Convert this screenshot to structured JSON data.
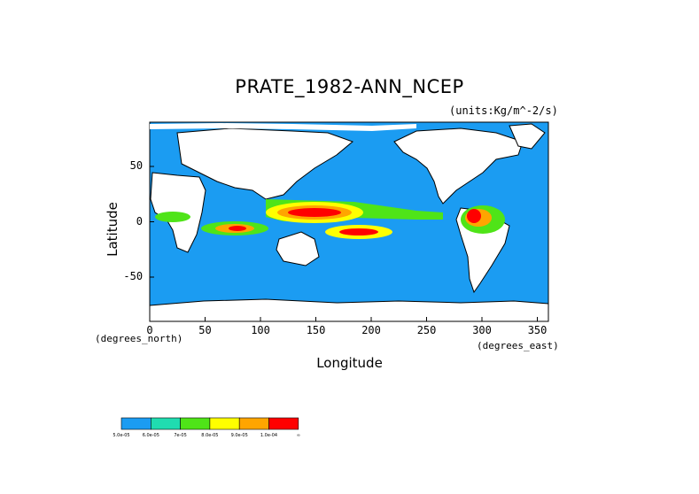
{
  "title": "PRATE_1982-ANN_NCEP",
  "units": "(units:Kg/m^-2/s)",
  "axes": {
    "xlabel": "Longitude",
    "ylabel": "Latitude",
    "x_units": "(degrees_east)",
    "y_units": "(degrees_north)",
    "x_ticks": [
      "0",
      "50",
      "100",
      "150",
      "200",
      "250",
      "300",
      "350"
    ],
    "y_ticks": [
      "50",
      "0",
      "-50"
    ],
    "xlim": [
      0,
      360
    ],
    "ylim": [
      -90,
      90
    ]
  },
  "colors": {
    "ocean": "#1b9cf2",
    "land": "#ffffff",
    "coast": "#000000",
    "levels": [
      "#1b9cf2",
      "#20dcb0",
      "#4fe418",
      "#ffff00",
      "#ffa500",
      "#ff0000"
    ]
  },
  "colorbar": {
    "labels": [
      "5.0e-05",
      "6.0e-05",
      "7e-05",
      "8.0e-05",
      "9.0e-05",
      "1.0e-04",
      "∞"
    ]
  }
}
